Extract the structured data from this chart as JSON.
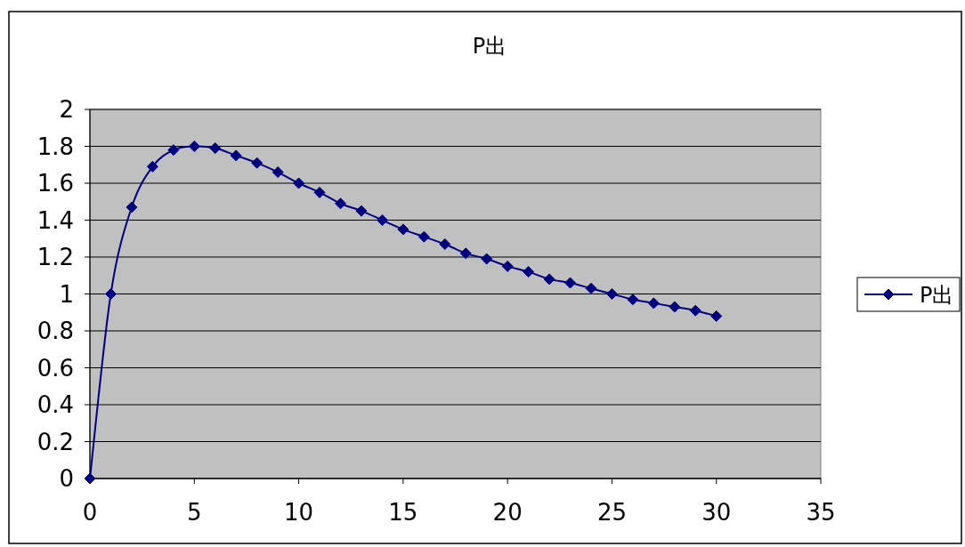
{
  "chart_data": {
    "type": "line",
    "title": "P出",
    "x": [
      0,
      1,
      2,
      3,
      4,
      5,
      6,
      7,
      8,
      9,
      10,
      11,
      12,
      13,
      14,
      15,
      16,
      17,
      18,
      19,
      20,
      21,
      22,
      23,
      24,
      25,
      26,
      27,
      28,
      29,
      30
    ],
    "series": [
      {
        "name": "P出",
        "color": "#000080",
        "values": [
          0,
          1.0,
          1.47,
          1.69,
          1.78,
          1.8,
          1.79,
          1.75,
          1.71,
          1.66,
          1.6,
          1.55,
          1.49,
          1.45,
          1.4,
          1.35,
          1.31,
          1.27,
          1.22,
          1.19,
          1.15,
          1.12,
          1.08,
          1.06,
          1.03,
          1.0,
          0.97,
          0.95,
          0.93,
          0.91,
          0.88
        ]
      }
    ],
    "xlim": [
      0,
      35
    ],
    "xticks": [
      0,
      5,
      10,
      15,
      20,
      25,
      30,
      35
    ],
    "ylim": [
      0,
      2
    ],
    "yticks": [
      0,
      0.2,
      0.4,
      0.6,
      0.8,
      1,
      1.2,
      1.4,
      1.6,
      1.8,
      2
    ],
    "grid": "y",
    "legend": "right",
    "marker": "diamond",
    "line_style": "solid"
  }
}
